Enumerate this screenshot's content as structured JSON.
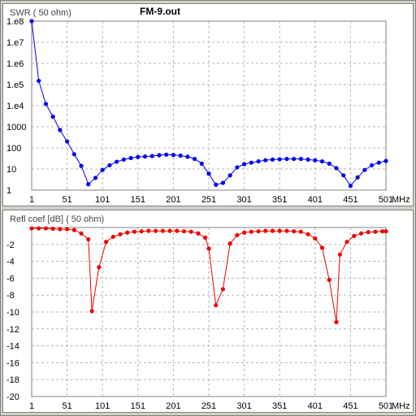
{
  "file_title": "FM-9.out",
  "chart_data": [
    {
      "type": "line",
      "title": "FM-9.out",
      "ylabel": "SWR ( 50 ohm)",
      "xunit": "MHz",
      "yscale": "log",
      "xlim": [
        1,
        501
      ],
      "ylim": [
        1,
        100000000
      ],
      "grid": true,
      "xticks": [
        1,
        51,
        101,
        151,
        201,
        251,
        301,
        351,
        401,
        451,
        501
      ],
      "xtick_labels": [
        "1",
        "51",
        "101",
        "151",
        "201",
        "251",
        "301",
        "351",
        "401",
        "451",
        "501"
      ],
      "yticks": [
        1,
        10,
        100,
        1000,
        10000,
        100000,
        1000000,
        10000000,
        100000000
      ],
      "ytick_labels": [
        "1",
        "10",
        "100",
        "1000",
        "1.e4",
        "1.e5",
        "1.e6",
        "1.e7",
        "1.e8"
      ],
      "color": "#0000ee",
      "series": [
        {
          "x": [
            1,
            11,
            21,
            31,
            41,
            51,
            61,
            71,
            81,
            91,
            101,
            111,
            121,
            131,
            141,
            151,
            161,
            171,
            181,
            191,
            201,
            211,
            221,
            231,
            241,
            251,
            261,
            271,
            281,
            291,
            301,
            311,
            321,
            331,
            341,
            351,
            361,
            371,
            381,
            391,
            401,
            411,
            421,
            431,
            441,
            451,
            461,
            471,
            481,
            491,
            501
          ],
          "y": [
            100000000,
            150000,
            12000,
            3000,
            700,
            200,
            50,
            14,
            1.9,
            3.8,
            9,
            15,
            22,
            28,
            33,
            37,
            39,
            41,
            45,
            48,
            46,
            43,
            38,
            30,
            18,
            6,
            1.8,
            2.2,
            5,
            12,
            17,
            20,
            23,
            26,
            28,
            29,
            30,
            30,
            30,
            28,
            26,
            23,
            18,
            11,
            5,
            1.6,
            4,
            9,
            15,
            20,
            24
          ]
        }
      ]
    },
    {
      "type": "line",
      "ylabel": "Refl coef [dB] ( 50 ohm)",
      "xunit": "MHz",
      "xlim": [
        1,
        501
      ],
      "ylim": [
        -20,
        0
      ],
      "grid": true,
      "xticks": [
        1,
        51,
        101,
        151,
        201,
        251,
        301,
        351,
        401,
        451,
        501
      ],
      "xtick_labels": [
        "1",
        "51",
        "101",
        "151",
        "201",
        "251",
        "301",
        "351",
        "401",
        "451",
        "501"
      ],
      "yticks": [
        -2,
        -4,
        -6,
        -8,
        -10,
        -12,
        -14,
        -16,
        -18,
        -20
      ],
      "ytick_labels": [
        "-2",
        "-4",
        "-6",
        "-8",
        "-10",
        "-12",
        "-14",
        "-16",
        "-18",
        "-20"
      ],
      "color": "#ee0000",
      "series": [
        {
          "x": [
            1,
            11,
            21,
            31,
            41,
            51,
            61,
            71,
            81,
            86,
            96,
            106,
            116,
            126,
            136,
            146,
            156,
            166,
            176,
            186,
            196,
            206,
            216,
            226,
            236,
            246,
            251,
            261,
            271,
            281,
            291,
            301,
            311,
            321,
            331,
            341,
            351,
            361,
            371,
            381,
            391,
            401,
            411,
            421,
            431,
            436,
            446,
            456,
            466,
            476,
            486,
            496,
            501
          ],
          "y": [
            -0.1,
            -0.1,
            -0.1,
            -0.15,
            -0.2,
            -0.2,
            -0.3,
            -0.7,
            -1.4,
            -9.9,
            -4.7,
            -1.7,
            -1.1,
            -0.8,
            -0.6,
            -0.5,
            -0.45,
            -0.4,
            -0.4,
            -0.4,
            -0.4,
            -0.4,
            -0.45,
            -0.5,
            -0.7,
            -1.2,
            -2.5,
            -9.2,
            -7.3,
            -1.9,
            -0.9,
            -0.6,
            -0.5,
            -0.45,
            -0.4,
            -0.4,
            -0.4,
            -0.4,
            -0.45,
            -0.5,
            -0.8,
            -1.3,
            -2.4,
            -6.2,
            -11.2,
            -3.2,
            -1.7,
            -1.0,
            -0.7,
            -0.55,
            -0.5,
            -0.45,
            -0.45
          ]
        }
      ]
    }
  ]
}
